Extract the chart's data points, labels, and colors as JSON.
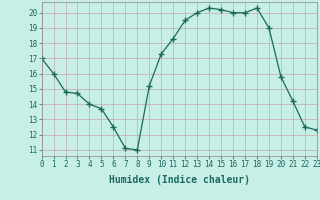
{
  "x": [
    0,
    1,
    2,
    3,
    4,
    5,
    6,
    7,
    8,
    9,
    10,
    11,
    12,
    13,
    14,
    15,
    16,
    17,
    18,
    19,
    20,
    21,
    22,
    23
  ],
  "y": [
    17,
    16,
    14.8,
    14.7,
    14,
    13.7,
    12.5,
    11.1,
    11.0,
    15.2,
    17.3,
    18.3,
    19.5,
    20.0,
    20.3,
    20.2,
    20.0,
    20.0,
    20.3,
    19.0,
    15.8,
    14.2,
    12.5,
    12.3
  ],
  "line_color": "#1a6b5a",
  "marker": "+",
  "marker_size": 4,
  "bg_color": "#c8eee8",
  "grid_color_major": "#b0b0b0",
  "grid_color_minor": "#d0c0c0",
  "xlabel": "Humidex (Indice chaleur)",
  "xlim": [
    0,
    23
  ],
  "ylim": [
    10.6,
    20.7
  ],
  "yticks": [
    11,
    12,
    13,
    14,
    15,
    16,
    17,
    18,
    19,
    20
  ],
  "xticks": [
    0,
    1,
    2,
    3,
    4,
    5,
    6,
    7,
    8,
    9,
    10,
    11,
    12,
    13,
    14,
    15,
    16,
    17,
    18,
    19,
    20,
    21,
    22,
    23
  ],
  "tick_fontsize": 5.5,
  "xlabel_fontsize": 7
}
